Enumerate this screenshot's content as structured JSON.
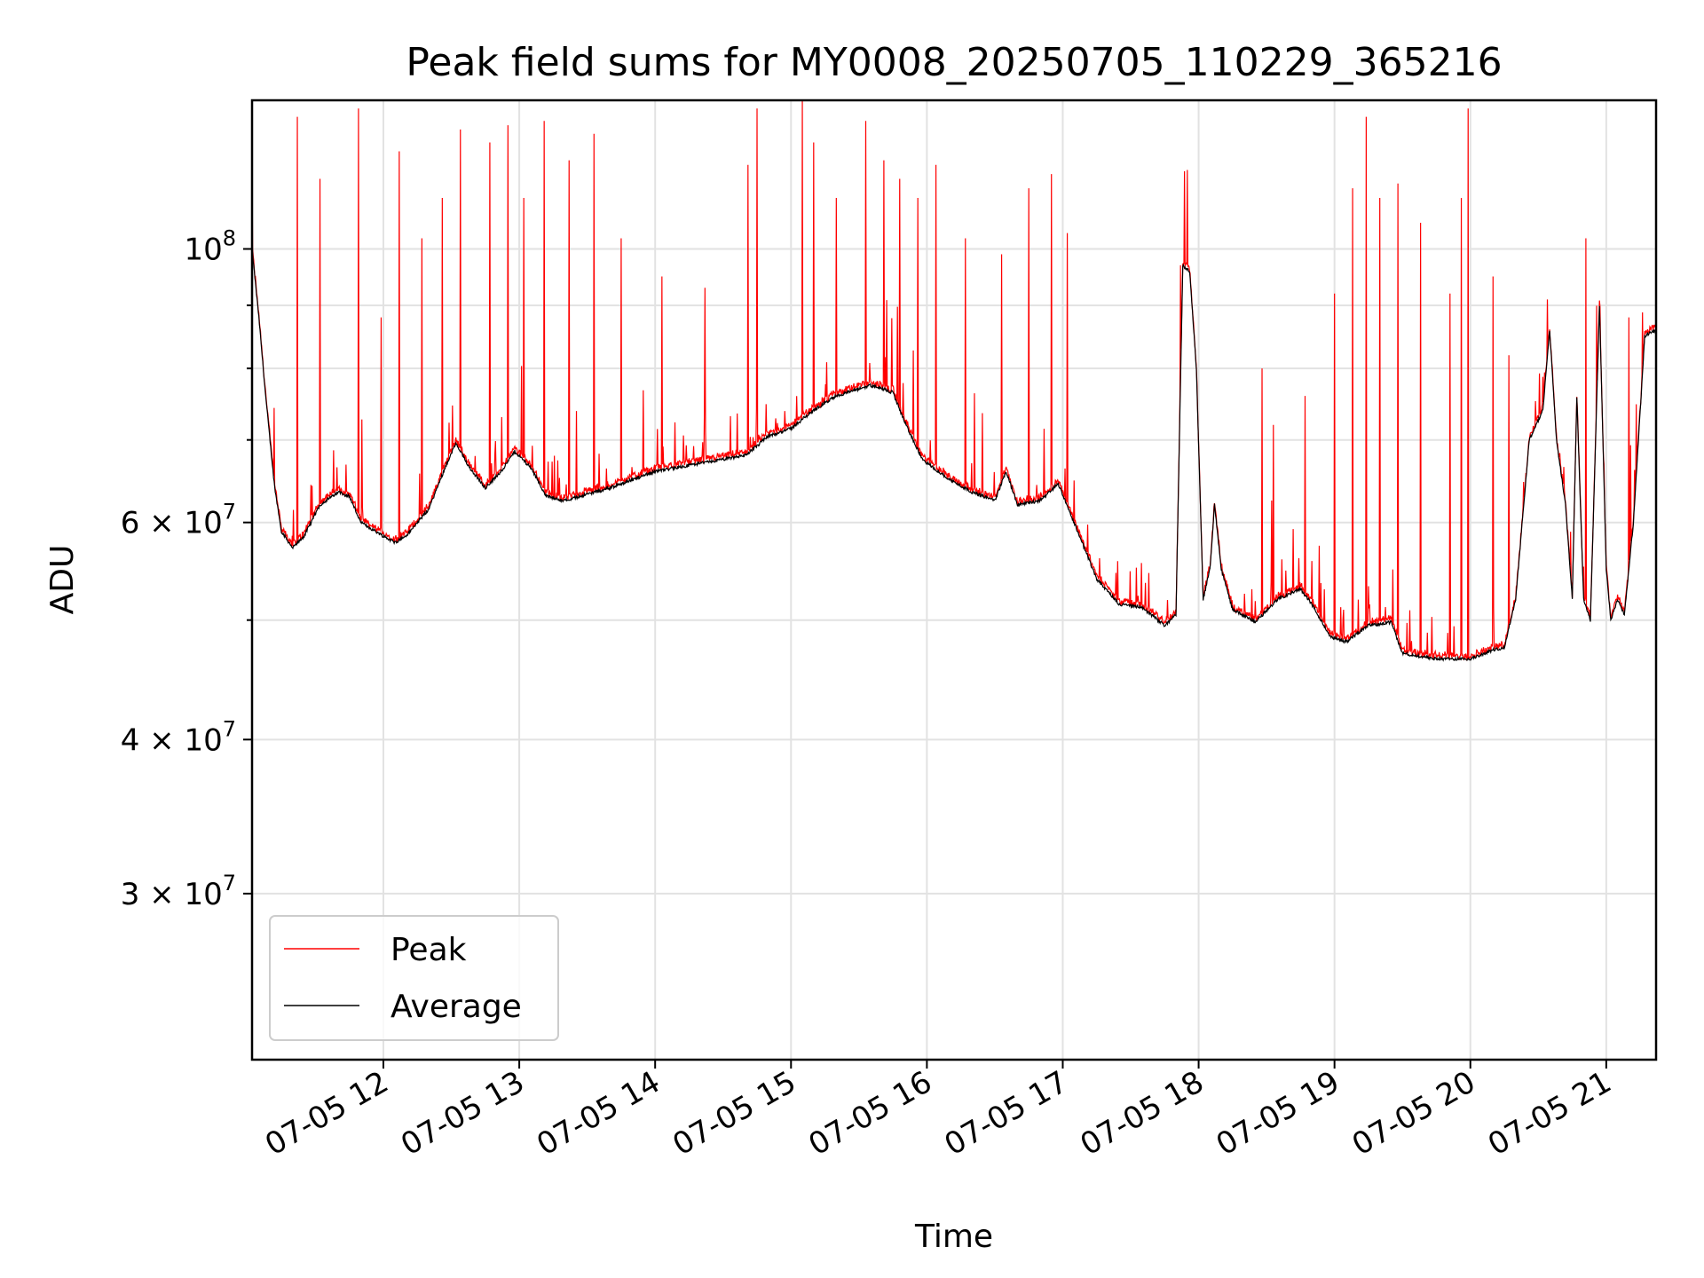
{
  "chart_data": {
    "type": "line",
    "title": "Peak field sums for MY0008_20250705_110229_365216",
    "xlabel": "Time",
    "ylabel": "ADU",
    "y_scale": "log",
    "ylim": [
      22000000,
      132000000
    ],
    "xlim": [
      "2025-07-05 11:02",
      "2025-07-05 21:22"
    ],
    "grid": true,
    "legend_position": "lower-left",
    "x_ticks": [
      {
        "value": "2025-07-05 12:00",
        "label": "07-05 12"
      },
      {
        "value": "2025-07-05 13:00",
        "label": "07-05 13"
      },
      {
        "value": "2025-07-05 14:00",
        "label": "07-05 14"
      },
      {
        "value": "2025-07-05 15:00",
        "label": "07-05 15"
      },
      {
        "value": "2025-07-05 16:00",
        "label": "07-05 16"
      },
      {
        "value": "2025-07-05 17:00",
        "label": "07-05 17"
      },
      {
        "value": "2025-07-05 18:00",
        "label": "07-05 18"
      },
      {
        "value": "2025-07-05 19:00",
        "label": "07-05 19"
      },
      {
        "value": "2025-07-05 20:00",
        "label": "07-05 20"
      },
      {
        "value": "2025-07-05 21:00",
        "label": "07-05 21"
      }
    ],
    "y_ticks": [
      {
        "value": 30000000,
        "mantissa": "3",
        "exp": "7"
      },
      {
        "value": 40000000,
        "mantissa": "4",
        "exp": "7"
      },
      {
        "value": 60000000,
        "mantissa": "6",
        "exp": "7"
      },
      {
        "value": 100000000,
        "mantissa": "",
        "exp": "8"
      }
    ],
    "y_minor_ticks": [
      50000000,
      70000000,
      80000000,
      90000000
    ],
    "series": [
      {
        "name": "Peak",
        "color": "#ff0000",
        "line_width": 1.2,
        "baseline_points": [
          [
            "2025-07-05 11:02",
            100000000
          ],
          [
            "2025-07-05 11:05",
            88000000
          ],
          [
            "2025-07-05 11:08",
            76000000
          ],
          [
            "2025-07-05 11:12",
            64000000
          ],
          [
            "2025-07-05 11:15",
            59000000
          ],
          [
            "2025-07-05 11:20",
            57200000
          ],
          [
            "2025-07-05 11:25",
            58500000
          ],
          [
            "2025-07-05 11:32",
            62000000
          ],
          [
            "2025-07-05 11:40",
            63500000
          ],
          [
            "2025-07-05 11:45",
            63000000
          ],
          [
            "2025-07-05 11:50",
            60000000
          ],
          [
            "2025-07-05 12:00",
            58500000
          ],
          [
            "2025-07-05 12:05",
            57800000
          ],
          [
            "2025-07-05 12:10",
            58500000
          ],
          [
            "2025-07-05 12:20",
            61500000
          ],
          [
            "2025-07-05 12:28",
            67000000
          ],
          [
            "2025-07-05 12:32",
            69500000
          ],
          [
            "2025-07-05 12:38",
            66500000
          ],
          [
            "2025-07-05 12:45",
            64000000
          ],
          [
            "2025-07-05 12:52",
            66000000
          ],
          [
            "2025-07-05 12:58",
            68500000
          ],
          [
            "2025-07-05 13:05",
            66500000
          ],
          [
            "2025-07-05 13:12",
            63000000
          ],
          [
            "2025-07-05 13:20",
            62500000
          ],
          [
            "2025-07-05 13:40",
            64000000
          ],
          [
            "2025-07-05 14:00",
            66000000
          ],
          [
            "2025-07-05 14:20",
            67000000
          ],
          [
            "2025-07-05 14:40",
            68000000
          ],
          [
            "2025-07-05 14:50",
            70500000
          ],
          [
            "2025-07-05 15:00",
            71500000
          ],
          [
            "2025-07-05 15:10",
            74000000
          ],
          [
            "2025-07-05 15:20",
            76000000
          ],
          [
            "2025-07-05 15:35",
            77500000
          ],
          [
            "2025-07-05 15:45",
            76500000
          ],
          [
            "2025-07-05 15:50",
            72500000
          ],
          [
            "2025-07-05 15:58",
            67500000
          ],
          [
            "2025-07-05 16:10",
            65000000
          ],
          [
            "2025-07-05 16:20",
            63500000
          ],
          [
            "2025-07-05 16:30",
            62500000
          ],
          [
            "2025-07-05 16:35",
            66000000
          ],
          [
            "2025-07-05 16:40",
            62000000
          ],
          [
            "2025-07-05 16:50",
            62500000
          ],
          [
            "2025-07-05 16:58",
            64500000
          ],
          [
            "2025-07-05 17:05",
            60000000
          ],
          [
            "2025-07-05 17:15",
            54000000
          ],
          [
            "2025-07-05 17:25",
            51500000
          ],
          [
            "2025-07-05 17:35",
            51200000
          ],
          [
            "2025-07-05 17:45",
            49500000
          ],
          [
            "2025-07-05 17:50",
            50500000
          ],
          [
            "2025-07-05 17:53",
            97000000
          ],
          [
            "2025-07-05 17:56",
            96000000
          ],
          [
            "2025-07-05 17:59",
            80000000
          ],
          [
            "2025-07-05 18:02",
            52000000
          ],
          [
            "2025-07-05 18:05",
            55000000
          ],
          [
            "2025-07-05 18:07",
            62000000
          ],
          [
            "2025-07-05 18:10",
            55000000
          ],
          [
            "2025-07-05 18:15",
            51000000
          ],
          [
            "2025-07-05 18:25",
            49800000
          ],
          [
            "2025-07-05 18:35",
            52000000
          ],
          [
            "2025-07-05 18:45",
            53000000
          ],
          [
            "2025-07-05 18:50",
            51500000
          ],
          [
            "2025-07-05 18:58",
            48500000
          ],
          [
            "2025-07-05 19:05",
            48000000
          ],
          [
            "2025-07-05 19:15",
            49500000
          ],
          [
            "2025-07-05 19:25",
            49800000
          ],
          [
            "2025-07-05 19:30",
            47000000
          ],
          [
            "2025-07-05 19:45",
            46500000
          ],
          [
            "2025-07-05 20:00",
            46500000
          ],
          [
            "2025-07-05 20:10",
            47300000
          ],
          [
            "2025-07-05 20:15",
            47500000
          ],
          [
            "2025-07-05 20:20",
            52000000
          ],
          [
            "2025-07-05 20:26",
            70000000
          ],
          [
            "2025-07-05 20:32",
            74000000
          ],
          [
            "2025-07-05 20:35",
            86000000
          ],
          [
            "2025-07-05 20:38",
            70000000
          ],
          [
            "2025-07-05 20:42",
            62000000
          ],
          [
            "2025-07-05 20:45",
            52000000
          ],
          [
            "2025-07-05 20:47",
            76000000
          ],
          [
            "2025-07-05 20:50",
            52000000
          ],
          [
            "2025-07-05 20:53",
            50000000
          ],
          [
            "2025-07-05 20:57",
            90000000
          ],
          [
            "2025-07-05 21:00",
            55000000
          ],
          [
            "2025-07-05 21:02",
            50000000
          ],
          [
            "2025-07-05 21:05",
            52000000
          ],
          [
            "2025-07-05 21:08",
            50500000
          ],
          [
            "2025-07-05 21:12",
            60000000
          ],
          [
            "2025-07-05 21:17",
            85000000
          ],
          [
            "2025-07-05 21:22",
            86000000
          ]
        ],
        "spikes": [
          [
            "2025-07-05 11:02",
            118000000
          ],
          [
            "2025-07-05 11:22",
            128000000
          ],
          [
            "2025-07-05 11:32",
            114000000
          ],
          [
            "2025-07-05 11:49",
            130000000
          ],
          [
            "2025-07-05 11:59",
            88000000
          ],
          [
            "2025-07-05 12:07",
            120000000
          ],
          [
            "2025-07-05 12:17",
            102000000
          ],
          [
            "2025-07-05 12:26",
            110000000
          ],
          [
            "2025-07-05 12:34",
            125000000
          ],
          [
            "2025-07-05 12:47",
            122000000
          ],
          [
            "2025-07-05 12:55",
            126000000
          ],
          [
            "2025-07-05 13:02",
            110000000
          ],
          [
            "2025-07-05 13:11",
            127000000
          ],
          [
            "2025-07-05 13:22",
            118000000
          ],
          [
            "2025-07-05 13:33",
            124000000
          ],
          [
            "2025-07-05 13:45",
            102000000
          ],
          [
            "2025-07-05 14:03",
            95000000
          ],
          [
            "2025-07-05 14:22",
            93000000
          ],
          [
            "2025-07-05 14:41",
            117000000
          ],
          [
            "2025-07-05 14:45",
            130000000
          ],
          [
            "2025-07-05 15:05",
            132000000
          ],
          [
            "2025-07-05 15:10",
            122000000
          ],
          [
            "2025-07-05 15:20",
            110000000
          ],
          [
            "2025-07-05 15:33",
            127000000
          ],
          [
            "2025-07-05 15:41",
            118000000
          ],
          [
            "2025-07-05 15:48",
            114000000
          ],
          [
            "2025-07-05 15:56",
            110000000
          ],
          [
            "2025-07-05 16:04",
            117000000
          ],
          [
            "2025-07-05 16:17",
            102000000
          ],
          [
            "2025-07-05 16:33",
            99000000
          ],
          [
            "2025-07-05 16:45",
            112000000
          ],
          [
            "2025-07-05 16:55",
            115000000
          ],
          [
            "2025-07-05 17:02",
            103000000
          ],
          [
            "2025-07-05 17:52",
            97000000
          ],
          [
            "2025-07-05 18:28",
            80000000
          ],
          [
            "2025-07-05 18:33",
            72000000
          ],
          [
            "2025-07-05 18:47",
            76000000
          ],
          [
            "2025-07-05 19:00",
            92000000
          ],
          [
            "2025-07-05 19:08",
            112000000
          ],
          [
            "2025-07-05 19:14",
            128000000
          ],
          [
            "2025-07-05 19:20",
            110000000
          ],
          [
            "2025-07-05 19:28",
            113000000
          ],
          [
            "2025-07-05 19:38",
            105000000
          ],
          [
            "2025-07-05 19:51",
            92000000
          ],
          [
            "2025-07-05 19:56",
            110000000
          ],
          [
            "2025-07-05 19:59",
            130000000
          ],
          [
            "2025-07-05 20:10",
            95000000
          ],
          [
            "2025-07-05 20:17",
            82000000
          ],
          [
            "2025-07-05 20:34",
            91000000
          ],
          [
            "2025-07-05 20:51",
            102000000
          ],
          [
            "2025-07-05 21:10",
            88000000
          ]
        ]
      },
      {
        "name": "Average",
        "color": "#000000",
        "line_width": 1.2
      }
    ]
  }
}
